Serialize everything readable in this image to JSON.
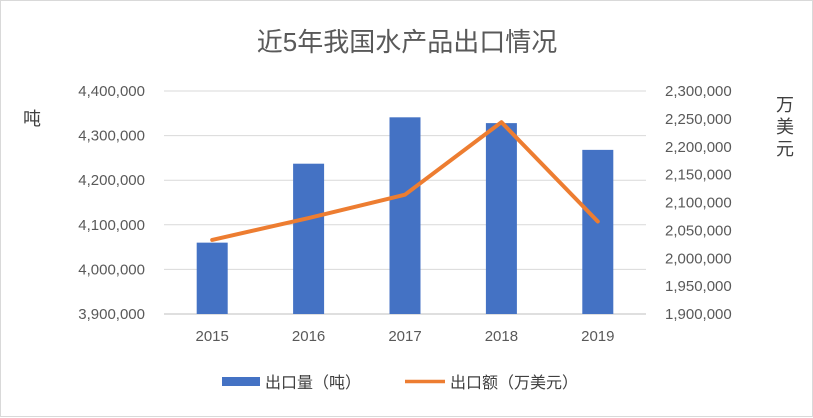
{
  "chart_data": {
    "type": "bar+line",
    "title": "近5年我国水产品出口情况",
    "categories": [
      "2015",
      "2016",
      "2017",
      "2018",
      "2019"
    ],
    "series": [
      {
        "name": "出口量（吨）",
        "type": "bar",
        "axis": "left",
        "color": "#4472c4",
        "values": [
          4060000,
          4237000,
          4341000,
          4328000,
          4268000
        ]
      },
      {
        "name": "出口额（万美元）",
        "type": "line",
        "axis": "right",
        "color": "#ed7d31",
        "values": [
          2033000,
          2072000,
          2114000,
          2244000,
          2066000
        ]
      }
    ],
    "y_left": {
      "label": "吨",
      "ylim": [
        3900000,
        4400000
      ],
      "ticks": [
        "3,900,000",
        "4,000,000",
        "4,100,000",
        "4,200,000",
        "4,300,000",
        "4,400,000"
      ]
    },
    "y_right": {
      "label": "万美元",
      "ylim": [
        1900000,
        2300000
      ],
      "ticks": [
        "1,900,000",
        "1,950,000",
        "2,000,000",
        "2,050,000",
        "2,100,000",
        "2,150,000",
        "2,200,000",
        "2,250,000",
        "2,300,000"
      ]
    },
    "grid": true,
    "legend_position": "bottom"
  }
}
